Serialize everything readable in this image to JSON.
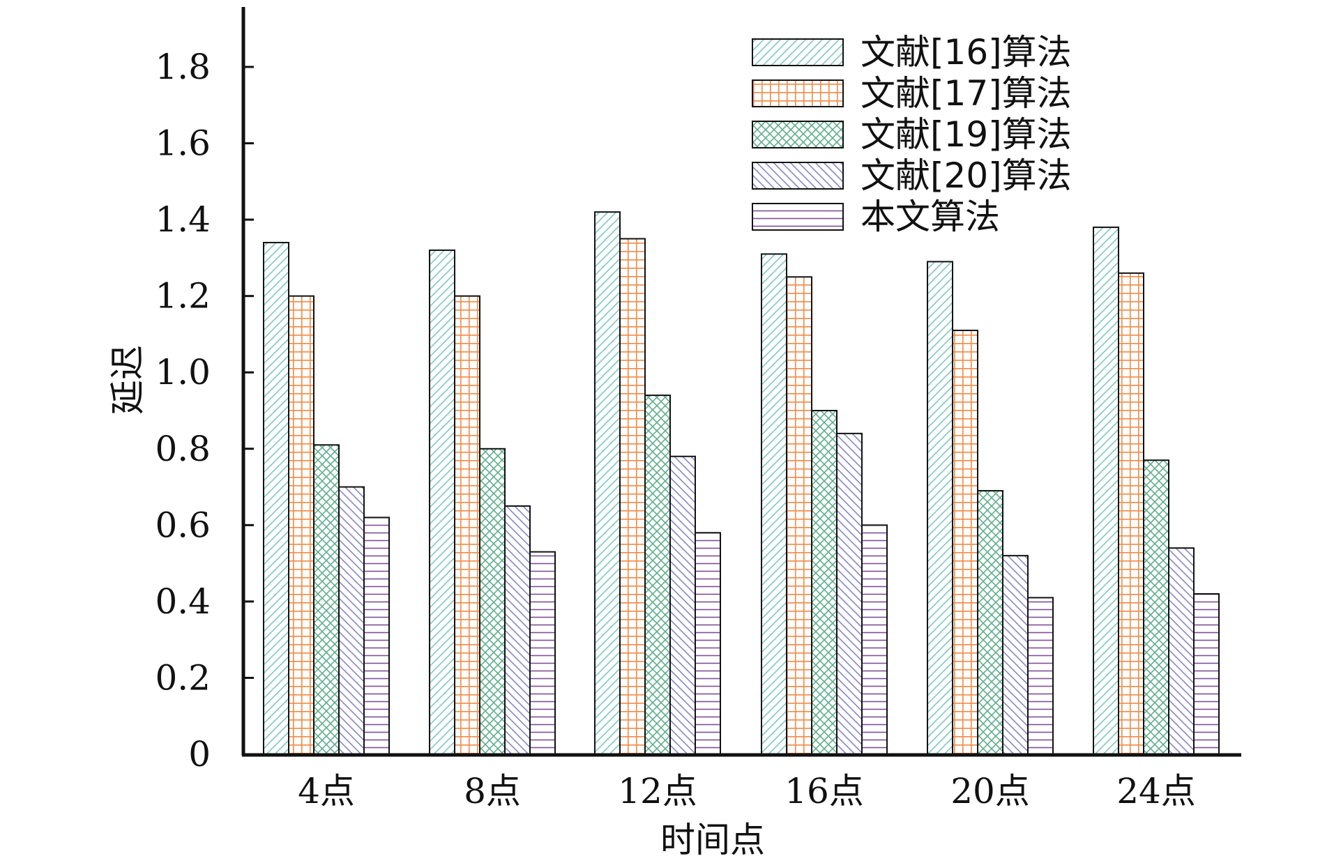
{
  "chart_data": {
    "type": "bar",
    "title": "",
    "xlabel": "时间点",
    "ylabel": "延迟",
    "ylim": [
      0,
      1.95
    ],
    "yticks": [
      0,
      0.2,
      0.4,
      0.6,
      0.8,
      1.0,
      1.2,
      1.4,
      1.6,
      1.8
    ],
    "ytick_labels": [
      "0",
      "0.2",
      "0.4",
      "0.6",
      "0.8",
      "1.0",
      "1.2",
      "1.4",
      "1.6",
      "1.8"
    ],
    "categories": [
      "4点",
      "8点",
      "12点",
      "16点",
      "20点",
      "24点"
    ],
    "legend_position": "top-right",
    "grid": false,
    "series": [
      {
        "name": "文献[16]算法",
        "values": [
          1.34,
          1.32,
          1.42,
          1.31,
          1.29,
          1.38
        ],
        "color": "#7ec8c4",
        "pattern": "diag-forward"
      },
      {
        "name": "文献[17]算法",
        "values": [
          1.2,
          1.2,
          1.35,
          1.25,
          1.11,
          1.26
        ],
        "color": "#f28a45",
        "pattern": "grid"
      },
      {
        "name": "文献[19]算法",
        "values": [
          0.81,
          0.8,
          0.94,
          0.9,
          0.69,
          0.77
        ],
        "color": "#5fae8c",
        "pattern": "crosshatch"
      },
      {
        "name": "文献[20]算法",
        "values": [
          0.7,
          0.65,
          0.78,
          0.84,
          0.52,
          0.54
        ],
        "color": "#8a86c4",
        "pattern": "diag-back"
      },
      {
        "name": "本文算法",
        "values": [
          0.62,
          0.53,
          0.58,
          0.6,
          0.41,
          0.42
        ],
        "color": "#7d4e98",
        "pattern": "horizontal"
      }
    ]
  }
}
